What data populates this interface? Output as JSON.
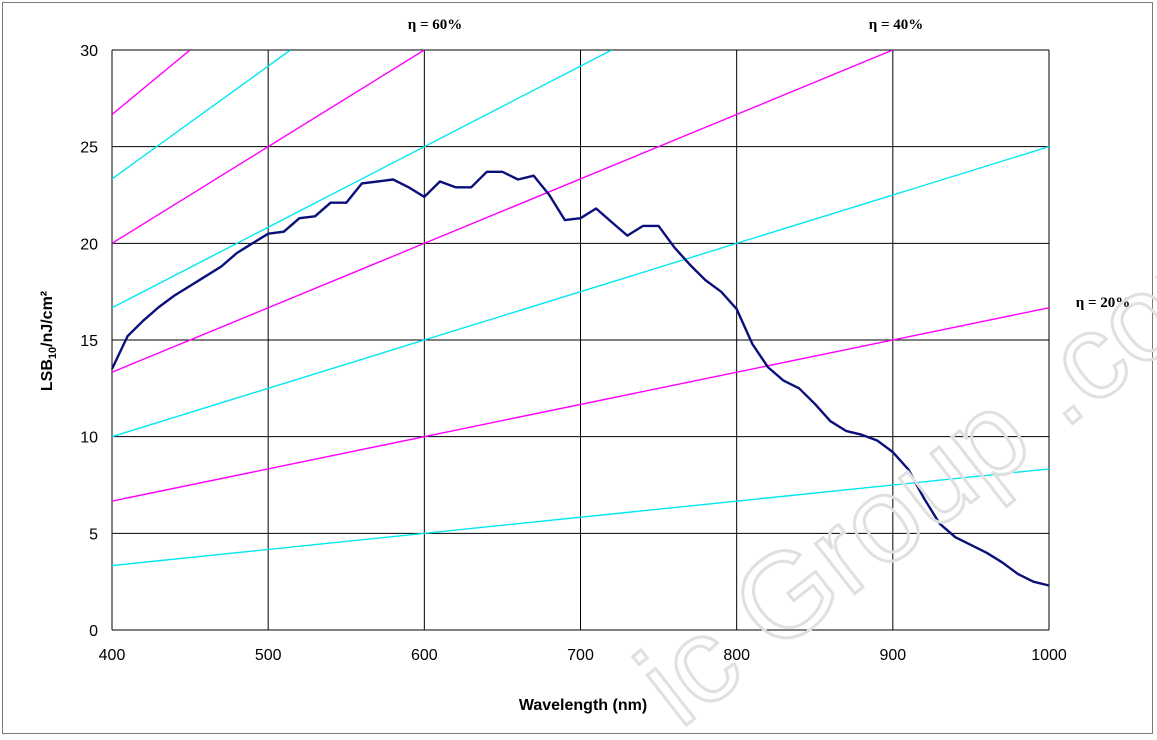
{
  "chart_data": {
    "type": "line",
    "title": "",
    "xlabel": "Wavelength (nm)",
    "ylabel_main": "LSB",
    "ylabel_sub": "10",
    "ylabel_rest": "/nJ/cm²",
    "xlim": [
      400,
      1000
    ],
    "ylim": [
      0,
      30
    ],
    "x_ticks": [
      "400",
      "500",
      "600",
      "700",
      "800",
      "900",
      "1000"
    ],
    "y_ticks": [
      "0",
      "5",
      "10",
      "15",
      "20",
      "25",
      "30"
    ],
    "grid": true,
    "annotations": [
      "η = 60%",
      "η = 40%",
      "η = 20%"
    ],
    "colors": {
      "sensor": "#0b0f7a",
      "magenta": "#ff00ff",
      "cyan": "#00e8f0",
      "grid": "#000000"
    },
    "sensor_series": {
      "x": [
        400,
        410,
        420,
        430,
        440,
        450,
        460,
        470,
        480,
        490,
        500,
        510,
        520,
        530,
        540,
        550,
        560,
        570,
        580,
        590,
        600,
        610,
        620,
        630,
        640,
        650,
        660,
        670,
        680,
        690,
        700,
        710,
        720,
        730,
        740,
        750,
        760,
        770,
        780,
        790,
        800,
        810,
        820,
        830,
        840,
        850,
        860,
        870,
        880,
        890,
        900,
        910,
        920,
        930,
        940,
        950,
        960,
        970,
        980,
        990,
        1000
      ],
      "y": [
        13.5,
        15.2,
        16.0,
        16.7,
        17.3,
        17.8,
        18.3,
        18.8,
        19.5,
        20.0,
        20.5,
        20.6,
        21.3,
        21.4,
        22.1,
        22.1,
        23.1,
        23.2,
        23.3,
        22.9,
        22.4,
        23.2,
        22.9,
        22.9,
        23.7,
        23.7,
        23.3,
        23.5,
        22.5,
        21.2,
        21.3,
        21.8,
        21.1,
        20.4,
        20.9,
        20.9,
        19.8,
        18.9,
        18.1,
        17.5,
        16.6,
        14.8,
        13.6,
        12.9,
        12.5,
        11.7,
        10.8,
        10.3,
        10.1,
        9.8,
        9.2,
        8.3,
        6.8,
        5.5,
        4.8,
        4.4,
        4.0,
        3.5,
        2.9,
        2.5,
        2.3
      ]
    },
    "magenta_slopes": [
      0.016667,
      0.033333,
      0.05,
      0.066667
    ],
    "cyan_slopes": [
      0.008333,
      0.025,
      0.041667,
      0.058333
    ]
  },
  "watermark": "ic Group .com"
}
